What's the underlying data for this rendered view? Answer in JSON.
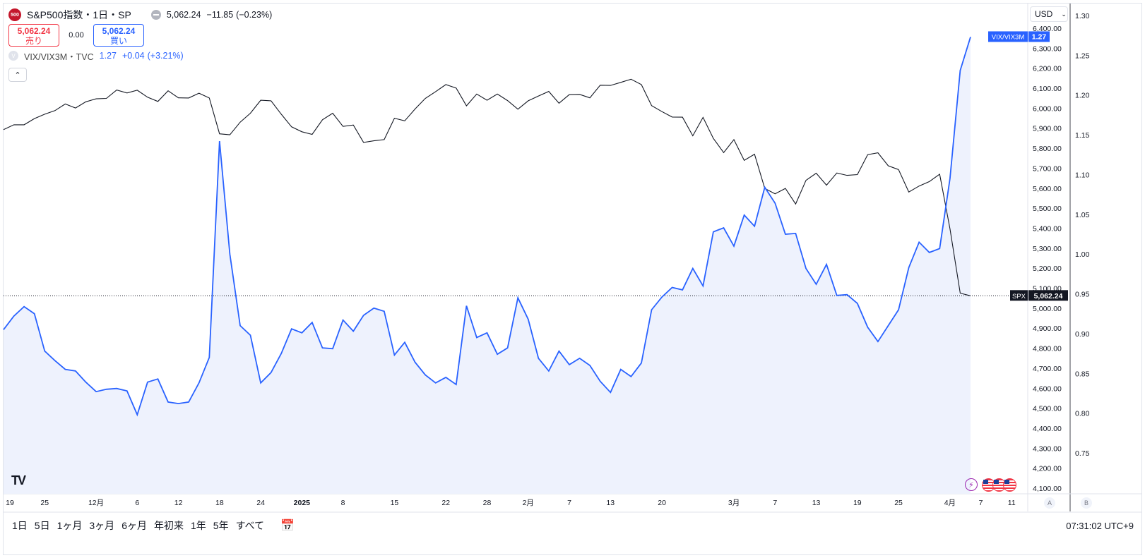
{
  "header": {
    "symbol_icon": "500",
    "title": "S&P500指数・1日・SP",
    "price": "5,062.24",
    "change": "−11.85",
    "change_pct": "(−0.23%)",
    "sell_price": "5,062.24",
    "sell_label": "売り",
    "spread": "0.00",
    "buy_price": "5,062.24",
    "buy_label": "買い",
    "vix_icon": "V",
    "vix_name": "VIX/VIX3M・TVC",
    "vix_value": "1.27",
    "vix_change": "+0.04",
    "vix_change_pct": "(+3.21%)",
    "collapse_icon": "chevron-up-icon"
  },
  "currency": "USD",
  "axis_buttons": [
    "A",
    "B"
  ],
  "periods": [
    "1日",
    "5日",
    "1ヶ月",
    "3ヶ月",
    "6ヶ月",
    "年初来",
    "1年",
    "5年",
    "すべて"
  ],
  "clock": "07:31:02 UTC+9",
  "colors": {
    "spx": "#131722",
    "vix": "#2962ff",
    "fill": "#eef2fd"
  },
  "chart_data": {
    "type": "line",
    "x_tick_labels": [
      "19",
      "25",
      "12月",
      "6",
      "12",
      "18",
      "24",
      "2025",
      "8",
      "15",
      "22",
      "28",
      "2月",
      "7",
      "13",
      "20",
      "3月",
      "7",
      "13",
      "19",
      "25",
      "4月",
      "7",
      "11"
    ],
    "y_left_ticks": [
      "6,400.00",
      "6,300.00",
      "6,200.00",
      "6,100.00",
      "6,000.00",
      "5,900.00",
      "5,800.00",
      "5,700.00",
      "5,600.00",
      "5,500.00",
      "5,400.00",
      "5,300.00",
      "5,200.00",
      "5,100.00",
      "5,000.00",
      "4,900.00",
      "4,800.00",
      "4,700.00",
      "4,600.00",
      "4,500.00",
      "4,400.00",
      "4,300.00",
      "4,200.00",
      "4,100.00"
    ],
    "y_right_ticks": [
      "1.30",
      "1.25",
      "1.20",
      "1.15",
      "1.10",
      "1.05",
      "1.00",
      "0.95",
      "0.90",
      "0.85",
      "0.80",
      "0.75"
    ],
    "ylim_left": [
      4100,
      6400
    ],
    "ylim_right": [
      0.73,
      1.31
    ],
    "last_label_spx": "5,062.24",
    "last_label_spx_tag": "SPX",
    "last_label_vix": "1.27",
    "last_label_vix_tag": "VIX/VIX3M",
    "series": [
      {
        "name": "SPX",
        "axis": "left",
        "values": [
          5893,
          5917,
          5917,
          5948,
          5970,
          5988,
          6021,
          6001,
          6032,
          6047,
          6049,
          6091,
          6076,
          6090,
          6055,
          6034,
          6087,
          6052,
          6051,
          6075,
          6051,
          5872,
          5867,
          5930,
          5975,
          6040,
          6037,
          5970,
          5907,
          5882,
          5869,
          5942,
          5975,
          5909,
          5916,
          5829,
          5837,
          5843,
          5950,
          5937,
          5996,
          6049,
          6083,
          6118,
          6101,
          6012,
          6071,
          6040,
          6071,
          6038,
          5995,
          6037,
          6061,
          6084,
          6025,
          6068,
          6069,
          6052,
          6115,
          6114,
          6129,
          6145,
          6118,
          6013,
          5983,
          5956,
          5955,
          5862,
          5954,
          5849,
          5778,
          5843,
          5739,
          5770,
          5599,
          5572,
          5599,
          5521,
          5639,
          5675,
          5615,
          5676,
          5664,
          5668,
          5768,
          5777,
          5712,
          5693,
          5581,
          5611,
          5633,
          5670,
          5397,
          5075,
          5062
        ]
      },
      {
        "name": "VIX/VIX3M",
        "axis": "right",
        "values": [
          0.905,
          0.922,
          0.934,
          0.925,
          0.878,
          0.866,
          0.855,
          0.853,
          0.839,
          0.827,
          0.83,
          0.831,
          0.828,
          0.798,
          0.839,
          0.843,
          0.814,
          0.812,
          0.814,
          0.838,
          0.87,
          1.142,
          1.0,
          0.91,
          0.898,
          0.838,
          0.851,
          0.875,
          0.906,
          0.901,
          0.914,
          0.882,
          0.881,
          0.917,
          0.903,
          0.923,
          0.932,
          0.928,
          0.873,
          0.889,
          0.864,
          0.848,
          0.838,
          0.845,
          0.836,
          0.935,
          0.895,
          0.901,
          0.874,
          0.882,
          0.945,
          0.918,
          0.869,
          0.853,
          0.878,
          0.861,
          0.869,
          0.86,
          0.84,
          0.826,
          0.855,
          0.846,
          0.863,
          0.93,
          0.946,
          0.958,
          0.955,
          0.982,
          0.96,
          1.028,
          1.033,
          1.01,
          1.049,
          1.035,
          1.084,
          1.064,
          1.025,
          1.026,
          0.982,
          0.962,
          0.987,
          0.948,
          0.949,
          0.938,
          0.908,
          0.89,
          0.91,
          0.93,
          0.983,
          1.015,
          1.002,
          1.007,
          1.095,
          1.231,
          1.273
        ]
      }
    ]
  }
}
